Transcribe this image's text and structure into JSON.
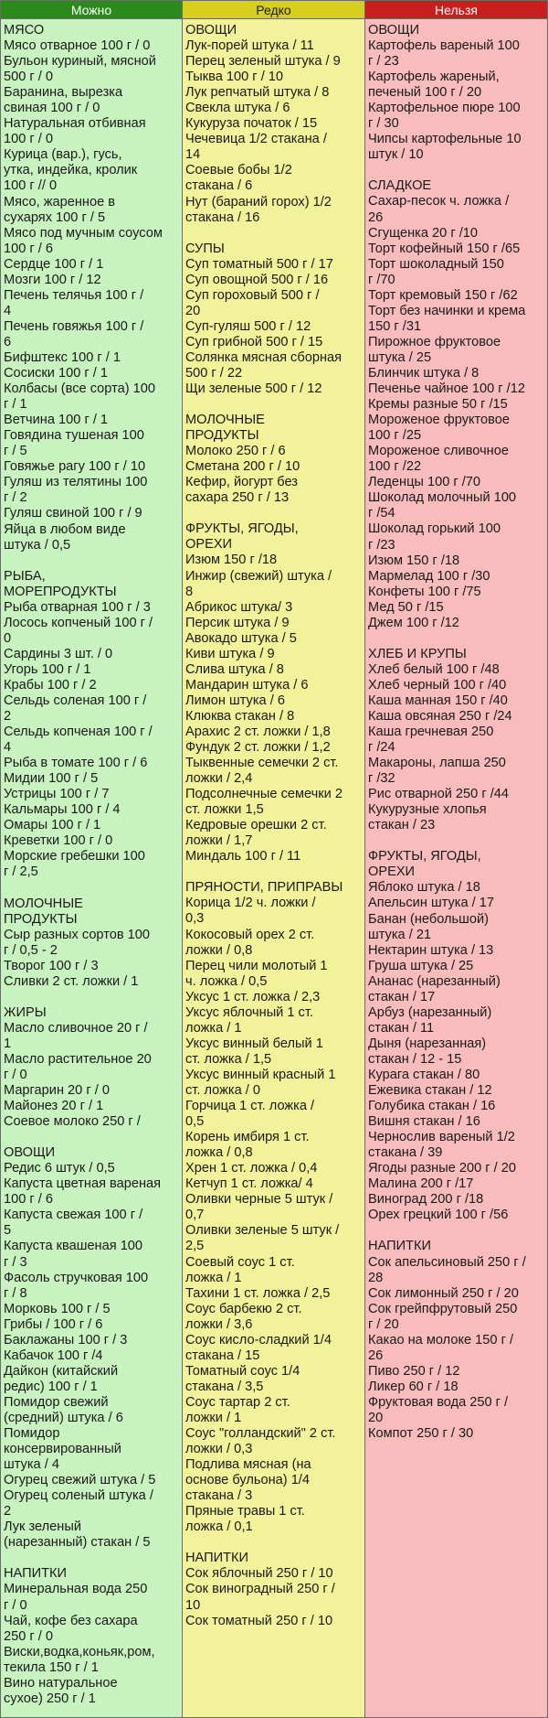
{
  "headers": {
    "allowed": "Можно",
    "rarely": "Редко",
    "forbidden": "Нельзя"
  },
  "allowed": [
    "МЯСО",
    "Мясо отварное 100 г / 0",
    "Бульон куриный, мясной",
    "500 г / 0",
    "Баранина, вырезка",
    "свиная 100 г / 0",
    "Натуральная отбивная",
    "100 г / 0",
    "Курица (вар.), гусь,",
    "утка, индейка, кролик",
    "100 г // 0",
    "Мясо, жаренное в",
    "сухарях 100 г / 5",
    "Мясо под мучным соусом",
    "100 г / 6",
    "Сердце 100 г / 1",
    "Мозги 100 г / 12",
    "Печень телячья 100 г /",
    "4",
    "Печень говяжья 100 г /",
    "6",
    "Бифштекс 100 г / 1",
    "Сосиски 100 г / 1",
    "Колбасы (все сорта) 100",
    "г / 1",
    "Ветчина 100 г / 1",
    "Говядина тушеная 100",
    "г / 5",
    "Говяжье рагу 100 г / 10",
    "Гуляш из телятины 100",
    "г / 2",
    "Гуляш свиной 100 г / 9",
    "Яйца в любом виде",
    "штука / 0,5",
    "",
    "РЫБА,",
    "МОРЕПРОДУКТЫ",
    "Рыба отварная 100 г / 3",
    "Лосось копченый 100 г /",
    "0",
    "Сардины 3 шт. / 0",
    "Угорь 100 г / 1",
    "Крабы 100 г / 2",
    "Сельдь соленая 100 г /",
    "2",
    "Сельдь копченая 100 г /",
    "4",
    "Рыба в томате 100 г / 6",
    "Мидии 100 г / 5",
    "Устрицы 100 г / 7",
    "Кальмары 100 г / 4",
    "Омары 100 г / 1",
    "Креветки 100 г / 0",
    "Морские гребешки 100",
    "г / 2,5",
    "",
    "МОЛОЧНЫЕ",
    "ПРОДУКТЫ",
    "Сыр разных сортов 100",
    "г / 0,5 - 2",
    "Творог 100 г / 3",
    "Сливки 2 ст. ложки / 1",
    "",
    "ЖИРЫ",
    "Масло сливочное 20 г /",
    "1",
    "Масло растительное 20",
    "г / 0",
    "Маргарин 20 г / 0",
    "Майонез 20 г / 1",
    "Соевое молоко 250 г /",
    "",
    "ОВОЩИ",
    "Редис 6 штук / 0,5",
    "Капуста цветная вареная",
    "100 г / 6",
    "Капуста свежая 100 г /",
    "5",
    "Капуста квашеная 100",
    "г / 3",
    "Фасоль стручковая 100",
    "г / 8",
    "Морковь 100 г / 5",
    "Грибы / 100 г / 6",
    "Баклажаны 100 г / 3",
    "Кабачок 100 г /4",
    "Дайкон (китайский",
    "редис) 100 г / 1",
    "Помидор свежий",
    "(средний) штука / 6",
    "Помидор",
    "консервированный",
    "штука / 4",
    "Огурец свежий штука / 5",
    "Огурец соленый штука /",
    "2",
    "Лук зеленый",
    "(нарезанный) стакан / 5",
    "",
    "НАПИТКИ",
    "Минеральная вода 250",
    "г / 0",
    "Чай, кофе без сахара",
    "250 г / 0",
    "Виски,водка,коньяк,ром,",
    "текила 150 г / 1",
    "Вино натуральное",
    "сухое) 250 г / 1"
  ],
  "rarely": [
    "ОВОЩИ",
    "Лук-порей штука / 11",
    "Перец зеленый штука / 9",
    "Тыква 100 г / 10",
    "Лук репчатый штука / 8",
    "Свекла штука / 6",
    "Кукуруза початок / 15",
    "Чечевица 1/2 стакана /",
    "14",
    "Соевые бобы 1/2",
    "стакана / 6",
    "Нут (бараний горох) 1/2",
    "стакана / 16",
    "",
    "СУПЫ",
    "Суп томатный 500 г / 17",
    "Суп овощной 500 г / 16",
    "Суп гороховый 500 г /",
    "20",
    "Суп-гуляш 500 г / 12",
    "Суп грибной 500 г / 15",
    "Солянка мясная сборная",
    "500 г / 22",
    "Щи зеленые 500 г / 12",
    "",
    "МОЛОЧНЫЕ",
    "ПРОДУКТЫ",
    "Молоко 250 г / 6",
    "Сметана 200 г / 10",
    "Кефир, йогурт без",
    "сахара 250 г / 13",
    "",
    "ФРУКТЫ, ЯГОДЫ,",
    "ОРЕХИ",
    "Изюм 150 г /18",
    "Инжир (свежий) штука /",
    "8",
    "Абрикос штука/ 3",
    "Персик штука / 9",
    "Авокадо штука / 5",
    "Киви штука / 9",
    "Слива штука / 8",
    "Мандарин штука / 6",
    "Лимон штука / 6",
    "Клюква стакан / 8",
    "Арахис 2 ст. ложки / 1,8",
    "Фундук 2 ст. ложки / 1,2",
    "Тыквенные семечки 2 ст.",
    "ложки / 2,4",
    "Подсолнечные семечки 2",
    "ст. ложки 1,5",
    "Кедровые орешки 2 ст.",
    "ложки / 1,7",
    "Миндаль 100 г / 11",
    "",
    "ПРЯНОСТИ, ПРИПРАВЫ",
    "Корица 1/2 ч. ложки /",
    "0,3",
    "Кокосовый орех 2 ст.",
    "ложки / 0,8",
    "Перец чили молотый 1",
    "ч. ложка / 0,5",
    "Уксус 1 ст. ложка / 2,3",
    "Уксус яблочный 1 ст.",
    "ложка / 1",
    "Уксус винный белый 1",
    "ст. ложка / 1,5",
    "Уксус винный красный 1",
    "ст. ложка / 0",
    "Горчица 1 ст. ложка /",
    "0,5",
    "Корень имбиря 1 ст.",
    "ложка / 0,8",
    "Хрен 1 ст. ложка / 0,4",
    "Кетчуп 1 ст. ложка/ 4",
    "Оливки черные 5 штук /",
    "0,7",
    "Оливки зеленые 5 штук /",
    "2,5",
    "Соевый соус 1 ст.",
    "ложка / 1",
    "Тахини 1 ст. ложка / 2,5",
    "Соус барбекю 2 ст.",
    "ложки / 3,6",
    "Соус кисло-сладкий 1/4",
    "стакана / 15",
    "Томатный соус 1/4",
    "стакана / 3,5",
    "Соус тартар 2 ст.",
    "ложки / 1",
    "Соус \"голландский\" 2 ст.",
    "ложки / 0,3",
    "Подлива мясная (на",
    "основе бульона) 1/4",
    "стакана / 3",
    "Пряные травы 1 ст.",
    "ложка / 0,1",
    "",
    "НАПИТКИ",
    "Сок яблочный 250 г / 10",
    "Сок виноградный 250 г /",
    "10",
    "Сок томатный 250 г / 10"
  ],
  "forbidden": [
    "ОВОЩИ",
    "Картофель вареный 100",
    "г / 23",
    "Картофель жареный,",
    "печеный 100 г / 20",
    "Картофельное пюре 100",
    "г / 30",
    "Чипсы картофельные 10",
    "штук / 10",
    "",
    "СЛАДКОЕ",
    "Сахар-песок ч. ложка /",
    "26",
    "Сгущенка 20 г /10",
    "Торт кофейный 150 г /65",
    "Торт шоколадный 150",
    "г /70",
    "Торт кремовый 150 г /62",
    "Торт без начинки и крема",
    "150 г /31",
    "Пирожное фруктовое",
    "штука / 25",
    "Блинчик штука / 8",
    "Печенье чайное 100 г /12",
    "Кремы разные 50 г /15",
    "Мороженое фруктовое",
    "100 г /25",
    "Мороженое сливочное",
    "100 г /22",
    "Леденцы 100 г /70",
    "Шоколад молочный 100",
    "г /54",
    "Шоколад горький 100",
    "г /23",
    "Изюм 150 г /18",
    "Мармелад 100 г /30",
    "Конфеты 100 г /75",
    "Мед 50 г /15",
    "Джем 100 г /12",
    "",
    "ХЛЕБ И КРУПЫ",
    "Хлеб белый 100 г /48",
    "Хлеб черный 100 г /40",
    "Каша манная 150 г /40",
    "Каша овсяная 250 г /24",
    "Каша гречневая 250",
    "г /24",
    "Макароны, лапша 250",
    "г /32",
    "Рис отварной 250 г /44",
    "Кукурузные хлопья",
    "стакан / 23",
    "",
    "ФРУКТЫ, ЯГОДЫ,",
    "ОРЕХИ",
    "Яблоко штука / 18",
    "Апельсин штука / 17",
    "Банан (небольшой)",
    "штука / 21",
    "Нектарин штука / 13",
    "Груша штука / 25",
    "Ананас (нарезанный)",
    "стакан / 17",
    "Арбуз (нарезанный)",
    "стакан / 11",
    "Дыня (нарезанная)",
    "стакан / 12 - 15",
    "Курага стакан / 80",
    "Ежевика стакан / 12",
    "Голубика стакан / 16",
    "Вишня стакан / 16",
    "Чернослив вареный 1/2",
    "стакана / 39",
    "Ягоды разные 200 г / 20",
    "Малина 200 г /17",
    "Виноград 200 г /18",
    "Орех грецкий 100 г /56",
    "",
    "НАПИТКИ",
    "Сок апельсиновый 250 г /",
    "28",
    "Сок лимонный 250 г / 20",
    "Сок грейпфрутовый 250",
    "г / 20",
    "Какао на молоке 150 г /",
    "26",
    "Пиво 250 г / 12",
    "Ликер 60 г / 18",
    "Фруктовая вода 250 г /",
    "20",
    "Компот 250 г / 30"
  ],
  "colors": {
    "allowed_header": "#2a8a1c",
    "allowed_bg": "#c8f2bf",
    "rarely_header": "#d6cf1e",
    "rarely_bg": "#f2f29a",
    "forbidden_header": "#c81e1e",
    "forbidden_bg": "#f8bcbc"
  }
}
